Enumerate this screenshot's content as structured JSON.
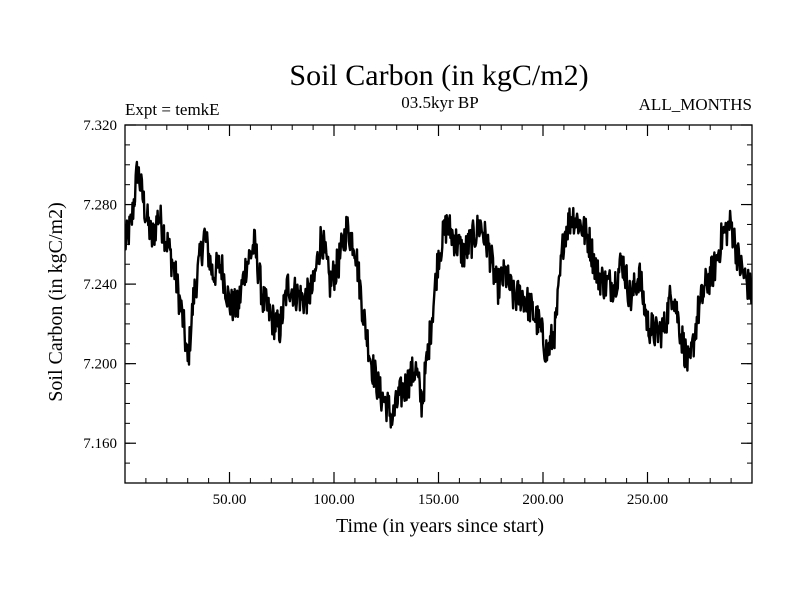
{
  "chart_data": {
    "type": "line",
    "title": "Soil Carbon (in kgC/m2)",
    "subtitle_left": "Expt = temkE",
    "subtitle_center": "03.5kyr BP",
    "subtitle_right": "ALL_MONTHS",
    "xlabel": "Time (in years since start)",
    "ylabel": "Soil Carbon (in kgC/m2)",
    "xlim": [
      0,
      300
    ],
    "ylim": [
      7.14,
      7.32
    ],
    "grid": false,
    "xticks": [
      50,
      100,
      150,
      200,
      250
    ],
    "xtick_labels": [
      "50.00",
      "100.00",
      "150.00",
      "200.00",
      "250.00"
    ],
    "yticks": [
      7.16,
      7.2,
      7.24,
      7.28,
      7.32
    ],
    "ytick_labels": [
      "7.160",
      "7.200",
      "7.240",
      "7.280",
      "7.320"
    ],
    "noise_amplitude": 0.009,
    "series": [
      {
        "name": "Soil Carbon",
        "x": [
          0,
          3,
          6,
          10,
          13,
          16,
          20,
          24,
          28,
          30,
          33,
          38,
          42,
          46,
          50,
          54,
          58,
          62,
          66,
          70,
          74,
          78,
          82,
          86,
          90,
          94,
          98,
          102,
          106,
          110,
          114,
          118,
          122,
          126,
          128,
          131,
          135,
          139,
          142,
          146,
          150,
          154,
          158,
          162,
          166,
          170,
          174,
          178,
          182,
          186,
          190,
          194,
          198,
          202,
          206,
          210,
          214,
          218,
          222,
          226,
          230,
          234,
          238,
          242,
          246,
          250,
          254,
          258,
          262,
          266,
          270,
          274,
          278,
          282,
          286,
          290,
          294,
          298,
          300
        ],
        "values": [
          7.26,
          7.27,
          7.298,
          7.275,
          7.262,
          7.275,
          7.262,
          7.245,
          7.22,
          7.2,
          7.235,
          7.265,
          7.245,
          7.25,
          7.23,
          7.228,
          7.25,
          7.26,
          7.232,
          7.223,
          7.217,
          7.24,
          7.235,
          7.232,
          7.238,
          7.265,
          7.24,
          7.25,
          7.268,
          7.26,
          7.225,
          7.2,
          7.185,
          7.178,
          7.172,
          7.183,
          7.19,
          7.198,
          7.18,
          7.215,
          7.255,
          7.27,
          7.262,
          7.255,
          7.262,
          7.27,
          7.258,
          7.238,
          7.245,
          7.233,
          7.235,
          7.228,
          7.22,
          7.205,
          7.218,
          7.265,
          7.275,
          7.27,
          7.262,
          7.245,
          7.24,
          7.24,
          7.252,
          7.232,
          7.245,
          7.22,
          7.215,
          7.218,
          7.238,
          7.215,
          7.197,
          7.225,
          7.24,
          7.248,
          7.265,
          7.27,
          7.25,
          7.24,
          7.235
        ]
      }
    ]
  }
}
